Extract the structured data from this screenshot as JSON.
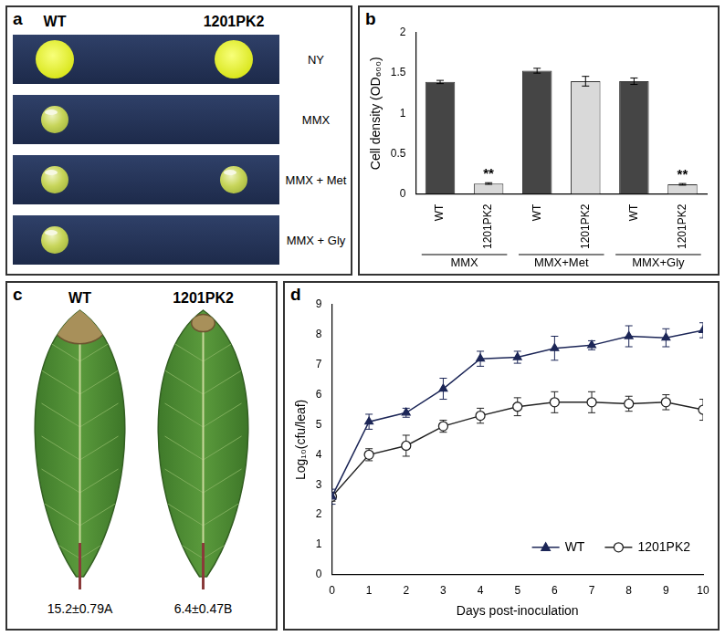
{
  "panel_a": {
    "panel_label": "a",
    "columns": [
      "WT",
      "1201PK2"
    ],
    "rows": [
      {
        "medium": "NY",
        "growth": [
          true,
          true
        ]
      },
      {
        "medium": "MMX",
        "growth": [
          true,
          false
        ]
      },
      {
        "medium": "MMX + Met",
        "growth": [
          true,
          true
        ]
      },
      {
        "medium": "MMX + Gly",
        "growth": [
          true,
          false
        ]
      }
    ]
  },
  "chart_data": [
    {
      "panel_label": "b",
      "type": "bar",
      "y_label": "Cell density (OD₆₀₀)",
      "categories": [
        "WT",
        "1201PK2",
        "WT",
        "1201PK2",
        "WT",
        "1201PK2"
      ],
      "groups": [
        "MMX",
        "MMX+Met",
        "MMX+Gly"
      ],
      "values": [
        1.39,
        0.13,
        1.53,
        1.4,
        1.4,
        0.12
      ],
      "errors": [
        0.02,
        0.01,
        0.03,
        0.06,
        0.04,
        0.01
      ],
      "colors": [
        "#454545",
        "#d9d9d9",
        "#454545",
        "#d9d9d9",
        "#454545",
        "#d9d9d9"
      ],
      "annotations": [
        null,
        "**",
        null,
        null,
        null,
        "**"
      ],
      "ylim": [
        0,
        2
      ],
      "yticks": [
        0,
        0.5,
        1,
        1.5,
        2
      ],
      "grid": false
    },
    {
      "panel_label": "d",
      "type": "line",
      "x_label": "Days post-inoculation",
      "y_label": "Log₁₀(cfu/leaf)",
      "x": [
        0,
        1,
        2,
        3,
        4,
        5,
        6,
        7,
        8,
        9,
        10
      ],
      "series": [
        {
          "name": "WT",
          "color": "#1c2657",
          "marker": "triangle",
          "values": [
            2.6,
            5.1,
            5.4,
            6.2,
            7.2,
            7.25,
            7.55,
            7.65,
            7.95,
            7.9,
            8.15
          ],
          "errors": [
            0.25,
            0.25,
            0.15,
            0.35,
            0.25,
            0.2,
            0.4,
            0.15,
            0.35,
            0.3,
            0.25
          ]
        },
        {
          "name": "1201PK2",
          "color": "#222222",
          "marker": "open_circle",
          "values": [
            2.6,
            4.0,
            4.3,
            4.95,
            5.3,
            5.6,
            5.75,
            5.75,
            5.7,
            5.75,
            5.5
          ],
          "errors": [
            0.15,
            0.2,
            0.35,
            0.2,
            0.25,
            0.3,
            0.35,
            0.35,
            0.25,
            0.25,
            0.35
          ]
        }
      ],
      "xlim": [
        0,
        10
      ],
      "xticks": [
        0,
        1,
        2,
        3,
        4,
        5,
        6,
        7,
        8,
        9,
        10
      ],
      "ylim": [
        0,
        9
      ],
      "yticks": [
        0,
        1,
        2,
        3,
        4,
        5,
        6,
        7,
        8,
        9
      ],
      "grid": false,
      "legend": "lower right"
    }
  ],
  "panel_c": {
    "panel_label": "c",
    "leaves": [
      {
        "label": "WT",
        "value": "15.2±0.79A"
      },
      {
        "label": "1201PK2",
        "value": "6.4±0.47B"
      }
    ]
  }
}
